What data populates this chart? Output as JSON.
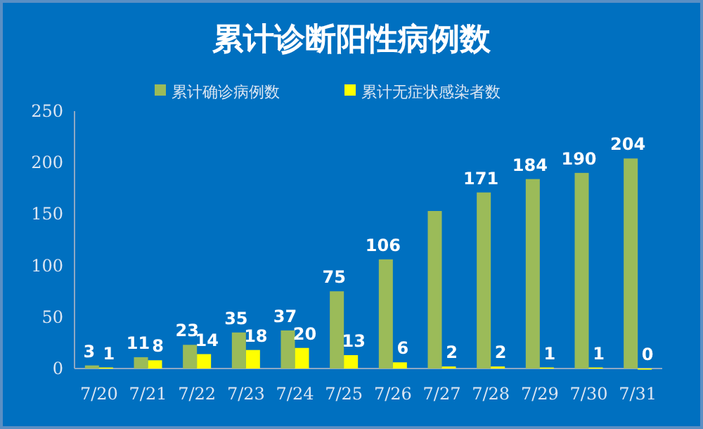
{
  "chart_data": {
    "type": "bar",
    "title": "累计诊断阳性病例数",
    "categories": [
      "7/20",
      "7/21",
      "7/22",
      "7/23",
      "7/24",
      "7/25",
      "7/26",
      "7/27",
      "7/28",
      "7/29",
      "7/30",
      "7/31"
    ],
    "series": [
      {
        "name": "累计确诊病例数",
        "color": "#9bbb59",
        "values": [
          3,
          11,
          23,
          35,
          37,
          75,
          106,
          153,
          171,
          184,
          190,
          204
        ],
        "value_labels": [
          "3",
          "11",
          "23",
          "35",
          "37",
          "75",
          "106",
          null,
          "171",
          "184",
          "190",
          "204"
        ]
      },
      {
        "name": "累计无症状感染者数",
        "color": "#ffff00",
        "values": [
          1,
          8,
          14,
          18,
          20,
          13,
          6,
          2,
          2,
          1,
          1,
          0
        ],
        "value_labels": [
          "1",
          "8",
          "14",
          "18",
          "20",
          "13",
          "6",
          "2",
          "2",
          "1",
          "1",
          "0"
        ]
      }
    ],
    "ylim": [
      0,
      250
    ],
    "yticks": [
      0,
      50,
      100,
      150,
      200,
      250
    ],
    "legend": "top"
  }
}
